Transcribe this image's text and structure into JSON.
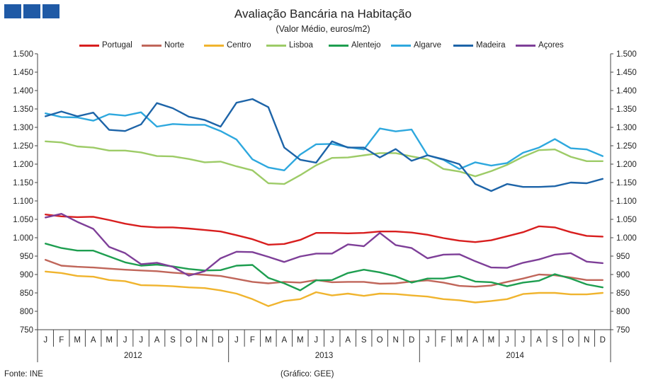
{
  "header": {
    "title": "Avaliação Bancária na Habitação",
    "subtitle": "(Valor Médio, euros/m2)"
  },
  "footer": {
    "source": "Fonte: INE",
    "credit": "(Gráfico: GEE)"
  },
  "colors": {
    "logo": "#1f5aa6"
  },
  "chart_data": {
    "type": "line",
    "title": "Avaliação Bancária na Habitação",
    "subtitle": "(Valor Médio, euros/m2)",
    "ylim": [
      750,
      1500
    ],
    "yticks": [
      "750",
      "800",
      "850",
      "900",
      "950",
      "1.000",
      "1.050",
      "1.100",
      "1.150",
      "1.200",
      "1.250",
      "1.300",
      "1.350",
      "1.400",
      "1.450",
      "1.500"
    ],
    "ytick_values": [
      750,
      800,
      850,
      900,
      950,
      1000,
      1050,
      1100,
      1150,
      1200,
      1250,
      1300,
      1350,
      1400,
      1450,
      1500
    ],
    "months": [
      "J",
      "F",
      "M",
      "A",
      "M",
      "J",
      "J",
      "A",
      "S",
      "O",
      "N",
      "D",
      "J",
      "F",
      "M",
      "A",
      "M",
      "J",
      "J",
      "A",
      "S",
      "O",
      "N",
      "D",
      "J",
      "F",
      "M",
      "A",
      "M",
      "J",
      "J",
      "A",
      "S",
      "O",
      "N",
      "D"
    ],
    "years": [
      "2012",
      "2013",
      "2014"
    ],
    "grid": false,
    "legend_position": "top",
    "series": [
      {
        "name": "Portugal",
        "color": "#d81e1e",
        "values": [
          1063,
          1058,
          1056,
          1057,
          1048,
          1038,
          1031,
          1028,
          1028,
          1025,
          1021,
          1017,
          1007,
          996,
          981,
          983,
          994,
          1013,
          1013,
          1012,
          1013,
          1017,
          1017,
          1014,
          1008,
          999,
          992,
          988,
          993,
          1004,
          1015,
          1031,
          1028,
          1015,
          1005,
          1003
        ]
      },
      {
        "name": "Norte",
        "color": "#c0665a",
        "values": [
          940,
          924,
          921,
          919,
          916,
          913,
          911,
          909,
          905,
          902,
          899,
          896,
          888,
          880,
          876,
          880,
          878,
          885,
          879,
          880,
          880,
          875,
          876,
          881,
          884,
          878,
          869,
          867,
          870,
          880,
          889,
          900,
          898,
          892,
          885,
          885
        ]
      },
      {
        "name": "Centro",
        "color": "#f0b42e",
        "values": [
          908,
          904,
          896,
          894,
          885,
          882,
          871,
          870,
          868,
          865,
          863,
          857,
          848,
          833,
          814,
          828,
          833,
          852,
          843,
          848,
          842,
          848,
          847,
          843,
          840,
          833,
          830,
          824,
          828,
          833,
          847,
          850,
          850,
          846,
          846,
          850
        ]
      },
      {
        "name": "Lisboa",
        "color": "#9dcb67",
        "values": [
          1262,
          1259,
          1248,
          1245,
          1237,
          1237,
          1232,
          1222,
          1221,
          1214,
          1205,
          1207,
          1194,
          1183,
          1148,
          1146,
          1170,
          1197,
          1217,
          1218,
          1224,
          1230,
          1230,
          1221,
          1213,
          1187,
          1180,
          1167,
          1181,
          1198,
          1220,
          1238,
          1240,
          1220,
          1208,
          1208
        ]
      },
      {
        "name": "Alentejo",
        "color": "#1e9e50",
        "values": [
          984,
          972,
          965,
          965,
          949,
          933,
          924,
          927,
          922,
          915,
          911,
          912,
          924,
          926,
          891,
          876,
          857,
          884,
          885,
          904,
          913,
          906,
          895,
          878,
          889,
          889,
          896,
          881,
          879,
          868,
          878,
          883,
          901,
          889,
          873,
          865
        ]
      },
      {
        "name": "Algarve",
        "color": "#2ea8de",
        "values": [
          1338,
          1328,
          1327,
          1318,
          1336,
          1332,
          1341,
          1302,
          1309,
          1307,
          1307,
          1290,
          1267,
          1213,
          1191,
          1183,
          1226,
          1254,
          1255,
          1246,
          1240,
          1297,
          1289,
          1294,
          1224,
          1212,
          1187,
          1205,
          1196,
          1203,
          1231,
          1245,
          1268,
          1243,
          1240,
          1222
        ]
      },
      {
        "name": "Madeira",
        "color": "#1d64a8",
        "values": [
          1330,
          1343,
          1330,
          1340,
          1293,
          1290,
          1308,
          1366,
          1352,
          1329,
          1320,
          1302,
          1367,
          1377,
          1355,
          1245,
          1212,
          1204,
          1262,
          1245,
          1245,
          1218,
          1241,
          1209,
          1224,
          1213,
          1200,
          1146,
          1127,
          1146,
          1138,
          1138,
          1140,
          1150,
          1148,
          1160
        ]
      },
      {
        "name": "Açores",
        "color": "#7e3f98",
        "values": [
          1055,
          1065,
          1043,
          1024,
          975,
          958,
          928,
          932,
          921,
          897,
          909,
          944,
          962,
          961,
          948,
          934,
          949,
          957,
          957,
          982,
          977,
          1013,
          980,
          972,
          944,
          954,
          955,
          936,
          919,
          918,
          932,
          941,
          954,
          958,
          935,
          931
        ]
      }
    ]
  }
}
